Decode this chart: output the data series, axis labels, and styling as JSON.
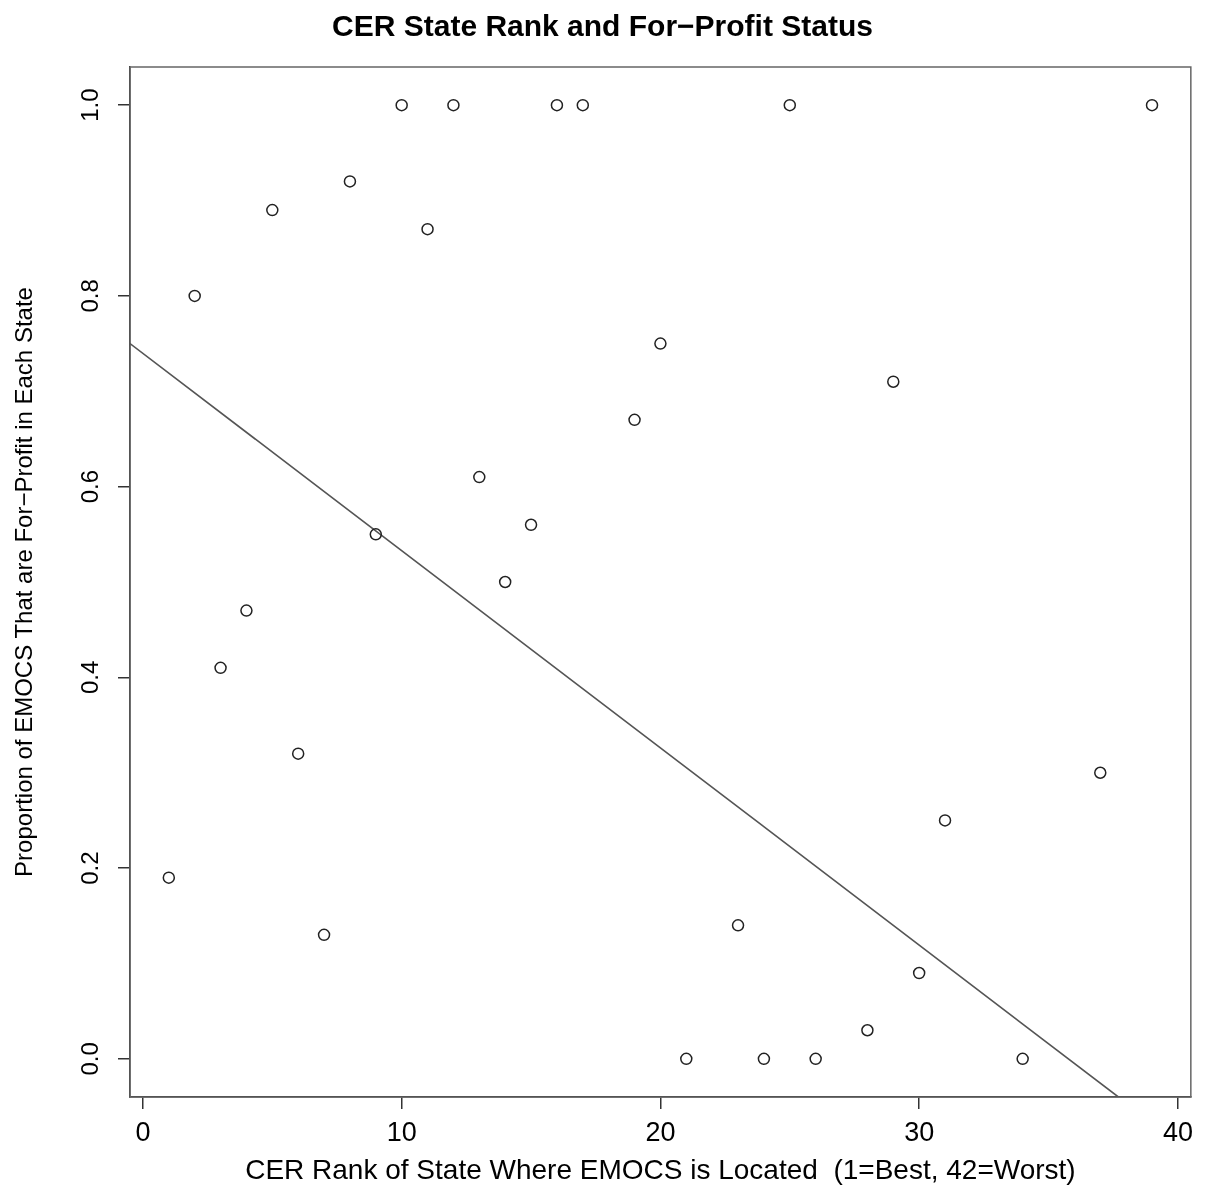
{
  "chart_data": {
    "type": "scatter",
    "title": "CER State Rank and For−Profit Status",
    "xlabel": "CER Rank of State Where EMOCS is Located  (1=Best, 42=Worst)",
    "ylabel": "Proportion of EMOCS That are For−Profit in Each State",
    "xlim": [
      -0.5,
      40.5
    ],
    "ylim": [
      -0.04,
      1.04
    ],
    "xticks": [
      0,
      10,
      20,
      30,
      40
    ],
    "yticks": [
      {
        "value": 0,
        "label": "0.0"
      },
      0.2,
      0.4,
      0.6,
      0.8,
      {
        "value": 1,
        "label": "1.0"
      }
    ],
    "series": [
      {
        "type": "scatter",
        "color": "#222222",
        "marker": "circle",
        "x": [
          1,
          2,
          3,
          4,
          5,
          6,
          7,
          8,
          9,
          10,
          11,
          12,
          13,
          14,
          15,
          16,
          17,
          19,
          20,
          21,
          23,
          24,
          25,
          26,
          28,
          29,
          30,
          31,
          34,
          37,
          39
        ],
        "values": [
          0.19,
          0.8,
          0.41,
          0.47,
          0.89,
          0.32,
          0.13,
          0.92,
          0.55,
          1.0,
          0.87,
          1.0,
          0.61,
          0.5,
          0.56,
          1.0,
          1.0,
          0.67,
          0.75,
          0,
          0.14,
          0,
          1.0,
          0,
          0.03,
          0.71,
          0.09,
          0.25,
          0,
          0.3,
          1.0
        ]
      },
      {
        "type": "line",
        "color": "#555555",
        "marker": "none",
        "line_style": "solid",
        "x": [
          -0.5,
          37.7
        ],
        "values": [
          0.75,
          -0.04
        ]
      }
    ]
  }
}
